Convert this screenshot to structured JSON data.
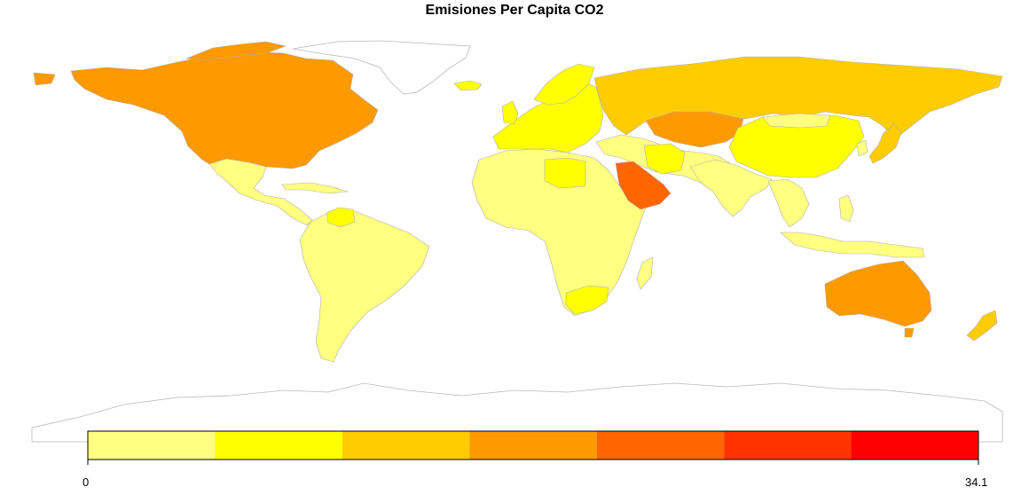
{
  "title": "Emisiones Per Capita CO2",
  "legend": {
    "min_label": "0",
    "max_label": "34.1",
    "colors": [
      "#FFFF80",
      "#FFFF00",
      "#FFCC00",
      "#FF9900",
      "#FF6600",
      "#FF3300",
      "#FF0000"
    ]
  },
  "regions": [
    {
      "name": "Canada / USA",
      "color_class": 3
    },
    {
      "name": "Greenland",
      "color_class": null
    },
    {
      "name": "Mexico / Central America",
      "color_class": 0
    },
    {
      "name": "South America",
      "color_class": 0
    },
    {
      "name": "Venezuela",
      "color_class": 1
    },
    {
      "name": "Europe",
      "color_class": 1
    },
    {
      "name": "Russia",
      "color_class": 2
    },
    {
      "name": "Kazakhstan",
      "color_class": 3
    },
    {
      "name": "Africa",
      "color_class": 0
    },
    {
      "name": "Libya",
      "color_class": 1
    },
    {
      "name": "South Africa",
      "color_class": 1
    },
    {
      "name": "Saudi Arabia / Gulf",
      "color_class": 4
    },
    {
      "name": "Iran",
      "color_class": 1
    },
    {
      "name": "South Asia",
      "color_class": 0
    },
    {
      "name": "China",
      "color_class": 1
    },
    {
      "name": "Japan",
      "color_class": 2
    },
    {
      "name": "Southeast Asia",
      "color_class": 0
    },
    {
      "name": "Australia",
      "color_class": 3
    },
    {
      "name": "New Zealand",
      "color_class": 2
    },
    {
      "name": "Antarctica",
      "color_class": null
    }
  ]
}
